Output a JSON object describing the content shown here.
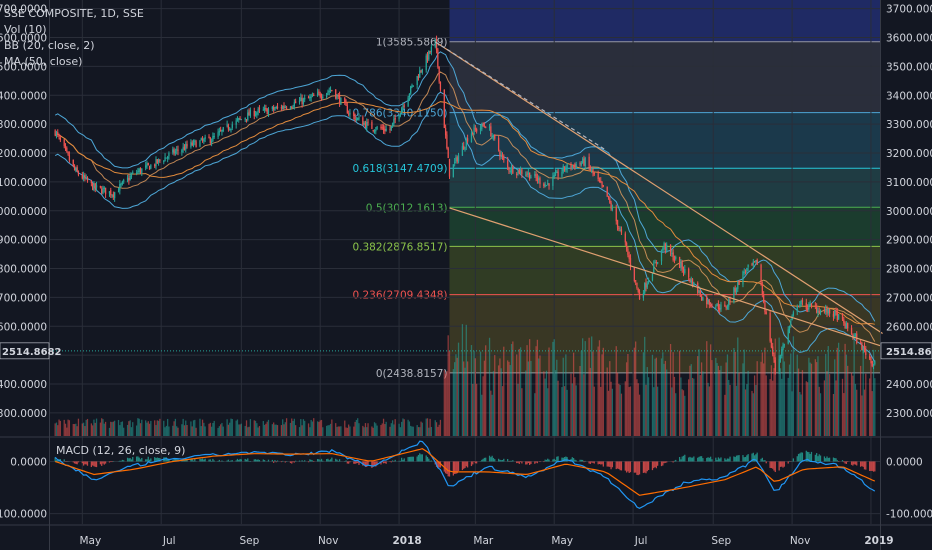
{
  "header": {
    "symbol_line": "SSE COMPOSITE, 1D, SSE",
    "indicators": [
      "Vol (10)",
      "BB (20, close, 2)",
      "MA (50, close)"
    ]
  },
  "macd_legend": "MACD (12, 26, close, 9)",
  "colors": {
    "background": "#131722",
    "grid": "#2a2e39",
    "up": "#26a69a",
    "down": "#ef5350",
    "bb": "#4da6d6",
    "ma": "#e08a3c",
    "trend": "#e0a070",
    "macd": "#2196f3",
    "signal": "#ff6d00"
  },
  "chart_data": [
    {
      "type": "candlestick",
      "title": "SSE COMPOSITE, 1D, SSE",
      "ylim": [
        2220,
        3730
      ],
      "y_ticks": [
        2300,
        2400,
        2500,
        2600,
        2700,
        2800,
        2900,
        3000,
        3100,
        3200,
        3300,
        3400,
        3500,
        3600,
        3700
      ],
      "y_tick_labels": [
        "2300.0000",
        "2400.0000",
        "2500.0000",
        "2600.0000",
        "2700.0000",
        "2800.0000",
        "2900.0000",
        "3000.0000",
        "3100.0000",
        "3200.0000",
        "3300.0000",
        "3400.0000",
        "3500.0000",
        "3600.0000",
        "3700.0000"
      ],
      "x_labels": [
        "May",
        "Jul",
        "Sep",
        "Nov",
        "2018",
        "Mar",
        "May",
        "Jul",
        "Sep",
        "Nov",
        "2019"
      ],
      "last_price": 2514.8682,
      "last_price_label": "2514.8682",
      "price_path": [
        [
          "2017-04-10",
          3275
        ],
        [
          "2017-04-25",
          3140
        ],
        [
          "2017-05-10",
          3080
        ],
        [
          "2017-05-25",
          3060
        ],
        [
          "2017-06-10",
          3130
        ],
        [
          "2017-06-25",
          3160
        ],
        [
          "2017-07-10",
          3200
        ],
        [
          "2017-07-25",
          3230
        ],
        [
          "2017-08-10",
          3250
        ],
        [
          "2017-08-25",
          3300
        ],
        [
          "2017-09-10",
          3340
        ],
        [
          "2017-09-25",
          3350
        ],
        [
          "2017-10-10",
          3370
        ],
        [
          "2017-10-25",
          3390
        ],
        [
          "2017-11-10",
          3420
        ],
        [
          "2017-11-25",
          3330
        ],
        [
          "2017-12-10",
          3290
        ],
        [
          "2017-12-25",
          3280
        ],
        [
          "2018-01-10",
          3420
        ],
        [
          "2018-01-29",
          3585
        ],
        [
          "2018-02-09",
          3130
        ],
        [
          "2018-02-25",
          3270
        ],
        [
          "2018-03-10",
          3300
        ],
        [
          "2018-03-25",
          3150
        ],
        [
          "2018-04-10",
          3130
        ],
        [
          "2018-04-25",
          3090
        ],
        [
          "2018-05-10",
          3150
        ],
        [
          "2018-05-25",
          3170
        ],
        [
          "2018-06-10",
          3060
        ],
        [
          "2018-06-25",
          2880
        ],
        [
          "2018-07-06",
          2700
        ],
        [
          "2018-07-25",
          2880
        ],
        [
          "2018-08-10",
          2790
        ],
        [
          "2018-08-25",
          2690
        ],
        [
          "2018-09-10",
          2660
        ],
        [
          "2018-09-25",
          2790
        ],
        [
          "2018-10-05",
          2820
        ],
        [
          "2018-10-19",
          2450
        ],
        [
          "2018-11-05",
          2680
        ],
        [
          "2018-11-20",
          2660
        ],
        [
          "2018-12-05",
          2640
        ],
        [
          "2018-12-20",
          2560
        ],
        [
          "2019-01-03",
          2470
        ],
        [
          "2019-01-06",
          2515
        ]
      ],
      "fibonacci": [
        {
          "level": "1",
          "price": 3585.5869,
          "label": "1(3585.5869)"
        },
        {
          "level": "0.786",
          "price": 3340.115,
          "label": "0.786(3340.1150)"
        },
        {
          "level": "0.618",
          "price": 3147.4709,
          "label": "0.618(3147.4709)"
        },
        {
          "level": "0.5",
          "price": 3012.1613,
          "label": "0.5(3012.1613)"
        },
        {
          "level": "0.382",
          "price": 2876.8517,
          "label": "0.382(2876.8517)"
        },
        {
          "level": "0.236",
          "price": 2709.4348,
          "label": "0.236(2709.4348)"
        },
        {
          "level": "0",
          "price": 2438.8157,
          "label": "0(2438.8157)"
        }
      ],
      "fibonacci_start": "2018-02-09",
      "trendlines": [
        {
          "from": [
            "2018-01-29",
            3585
          ],
          "to": [
            "2019-01-10",
            2575
          ]
        },
        {
          "from": [
            "2018-01-29",
            3585
          ],
          "to": [
            "2018-06-10",
            3210
          ],
          "dashed": true
        },
        {
          "from": [
            "2018-02-09",
            3010
          ],
          "to": [
            "2019-01-10",
            2530
          ]
        }
      ]
    },
    {
      "type": "line",
      "title": "MACD (12, 26, close, 9)",
      "ylim": [
        -120,
        45
      ],
      "y_ticks": [
        0,
        -100
      ],
      "y_tick_labels": [
        "0.0000",
        "-100.0000"
      ],
      "series": [
        {
          "values": [
            [
              "2017-04-10",
              5
            ],
            [
              "2017-05-10",
              -35
            ],
            [
              "2017-06-10",
              -8
            ],
            [
              "2017-07-10",
              5
            ],
            [
              "2017-08-10",
              12
            ],
            [
              "2017-09-10",
              18
            ],
            [
              "2017-10-10",
              12
            ],
            [
              "2017-11-10",
              20
            ],
            [
              "2017-12-10",
              -10
            ],
            [
              "2018-01-20",
              40
            ],
            [
              "2018-02-09",
              -50
            ],
            [
              "2018-03-10",
              -10
            ],
            [
              "2018-04-10",
              -30
            ],
            [
              "2018-05-10",
              5
            ],
            [
              "2018-06-10",
              -30
            ],
            [
              "2018-07-06",
              -90
            ],
            [
              "2018-08-10",
              -40
            ],
            [
              "2018-09-10",
              -30
            ],
            [
              "2018-10-05",
              5
            ],
            [
              "2018-10-19",
              -60
            ],
            [
              "2018-11-10",
              5
            ],
            [
              "2018-12-10",
              -10
            ],
            [
              "2019-01-06",
              -60
            ]
          ]
        },
        {
          "values": [
            [
              "2017-04-10",
              0
            ],
            [
              "2017-05-10",
              -25
            ],
            [
              "2017-06-10",
              -15
            ],
            [
              "2017-07-10",
              0
            ],
            [
              "2017-08-10",
              10
            ],
            [
              "2017-09-10",
              15
            ],
            [
              "2017-10-10",
              14
            ],
            [
              "2017-11-10",
              15
            ],
            [
              "2017-12-10",
              0
            ],
            [
              "2018-01-20",
              25
            ],
            [
              "2018-02-09",
              -20
            ],
            [
              "2018-03-10",
              -20
            ],
            [
              "2018-04-10",
              -25
            ],
            [
              "2018-05-10",
              -5
            ],
            [
              "2018-06-10",
              -20
            ],
            [
              "2018-07-06",
              -65
            ],
            [
              "2018-08-10",
              -50
            ],
            [
              "2018-09-10",
              -35
            ],
            [
              "2018-10-05",
              -10
            ],
            [
              "2018-10-19",
              -40
            ],
            [
              "2018-11-10",
              -15
            ],
            [
              "2018-12-10",
              -10
            ],
            [
              "2019-01-06",
              -40
            ]
          ]
        }
      ]
    }
  ]
}
